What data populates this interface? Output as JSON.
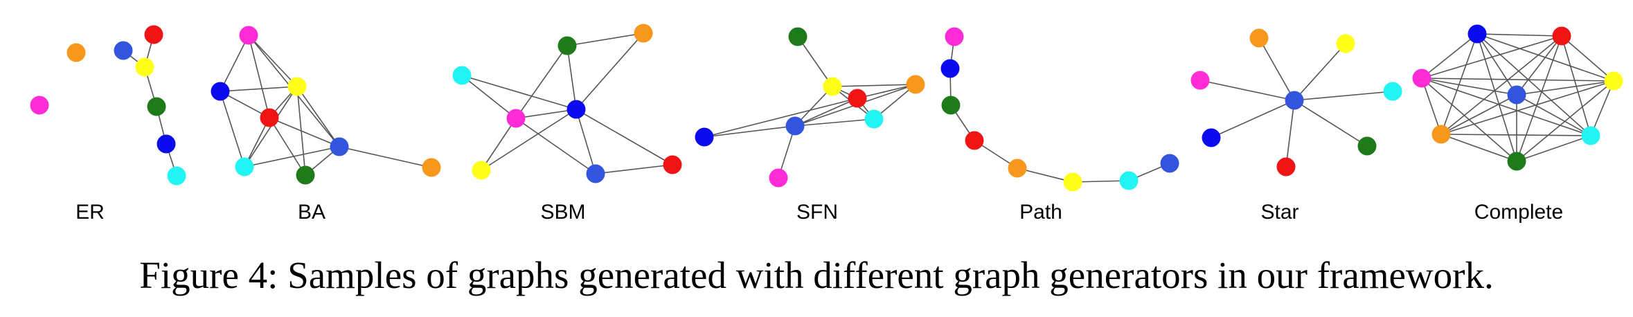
{
  "colors": {
    "magenta": "#ff2bd6",
    "orange": "#f7971c",
    "royal": "#3355dd",
    "red": "#f01414",
    "yellow": "#ffff1a",
    "green": "#1f7a1a",
    "blue": "#0b0bee",
    "cyan": "#22f4f4",
    "edge": "#555555"
  },
  "panels": [
    {
      "id": "er",
      "label": "ER"
    },
    {
      "id": "ba",
      "label": "BA"
    },
    {
      "id": "sbm",
      "label": "SBM"
    },
    {
      "id": "sfn",
      "label": "SFN"
    },
    {
      "id": "path",
      "label": "Path"
    },
    {
      "id": "star",
      "label": "Star"
    },
    {
      "id": "complete",
      "label": "Complete"
    }
  ],
  "caption": "Figure 4: Samples of graphs generated with different graph generators in our framework."
}
